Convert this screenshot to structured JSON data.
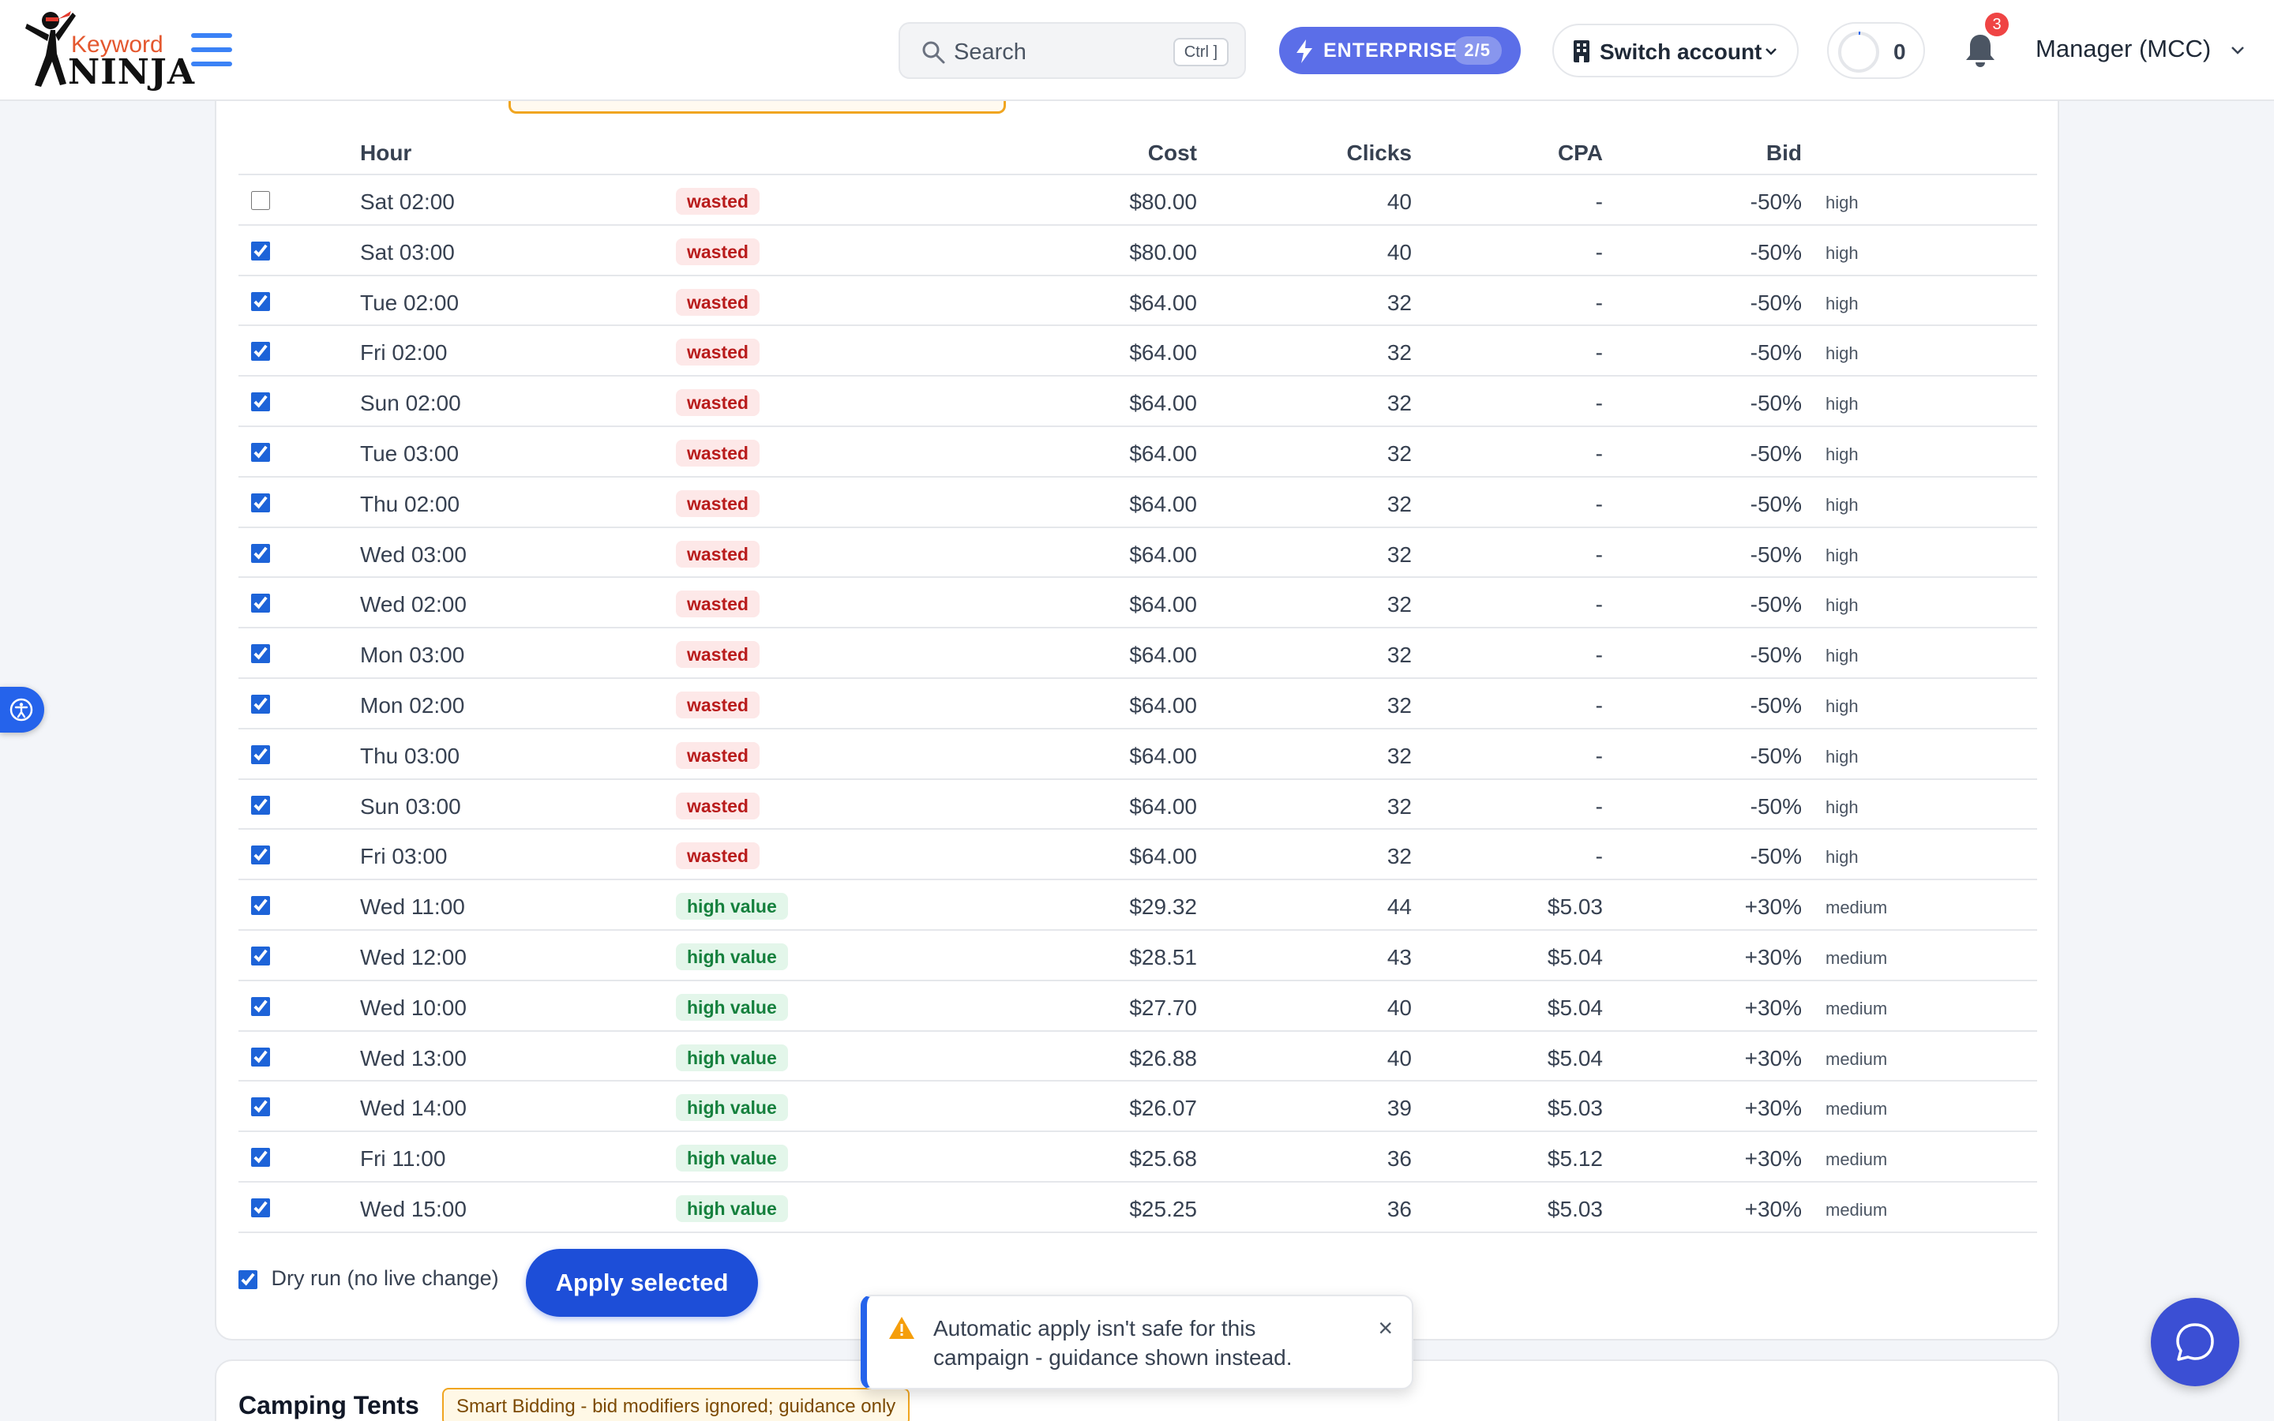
{
  "app": {
    "logo_top": "Keyword",
    "logo_bottom": "NINJA",
    "search_placeholder": "Search",
    "search_shortcut": "Ctrl ]",
    "plan_label": "ENTERPRISE",
    "plan_count": "2/5",
    "switch_account": "Switch account",
    "credits": "0",
    "notifications_count": "3",
    "account_name": "Manager (MCC)"
  },
  "colors": {
    "accent": "#1d4ed8",
    "enterprise": "#5b6ee8",
    "wasted_bg": "#fde8e8",
    "high_value_bg": "#e3f6ea",
    "warning": "#f0a520"
  },
  "table": {
    "headers": {
      "hour": "Hour",
      "cost": "Cost",
      "clicks": "Clicks",
      "cpa": "CPA",
      "bid": "Bid"
    },
    "rows": [
      {
        "checked": false,
        "hour": "Sat 02:00",
        "tag": "wasted",
        "cost": "$80.00",
        "clicks": "40",
        "cpa": "-",
        "bid": "-50%",
        "confidence": "high"
      },
      {
        "checked": true,
        "hour": "Sat 03:00",
        "tag": "wasted",
        "cost": "$80.00",
        "clicks": "40",
        "cpa": "-",
        "bid": "-50%",
        "confidence": "high"
      },
      {
        "checked": true,
        "hour": "Tue 02:00",
        "tag": "wasted",
        "cost": "$64.00",
        "clicks": "32",
        "cpa": "-",
        "bid": "-50%",
        "confidence": "high"
      },
      {
        "checked": true,
        "hour": "Fri 02:00",
        "tag": "wasted",
        "cost": "$64.00",
        "clicks": "32",
        "cpa": "-",
        "bid": "-50%",
        "confidence": "high"
      },
      {
        "checked": true,
        "hour": "Sun 02:00",
        "tag": "wasted",
        "cost": "$64.00",
        "clicks": "32",
        "cpa": "-",
        "bid": "-50%",
        "confidence": "high"
      },
      {
        "checked": true,
        "hour": "Tue 03:00",
        "tag": "wasted",
        "cost": "$64.00",
        "clicks": "32",
        "cpa": "-",
        "bid": "-50%",
        "confidence": "high"
      },
      {
        "checked": true,
        "hour": "Thu 02:00",
        "tag": "wasted",
        "cost": "$64.00",
        "clicks": "32",
        "cpa": "-",
        "bid": "-50%",
        "confidence": "high"
      },
      {
        "checked": true,
        "hour": "Wed 03:00",
        "tag": "wasted",
        "cost": "$64.00",
        "clicks": "32",
        "cpa": "-",
        "bid": "-50%",
        "confidence": "high"
      },
      {
        "checked": true,
        "hour": "Wed 02:00",
        "tag": "wasted",
        "cost": "$64.00",
        "clicks": "32",
        "cpa": "-",
        "bid": "-50%",
        "confidence": "high"
      },
      {
        "checked": true,
        "hour": "Mon 03:00",
        "tag": "wasted",
        "cost": "$64.00",
        "clicks": "32",
        "cpa": "-",
        "bid": "-50%",
        "confidence": "high"
      },
      {
        "checked": true,
        "hour": "Mon 02:00",
        "tag": "wasted",
        "cost": "$64.00",
        "clicks": "32",
        "cpa": "-",
        "bid": "-50%",
        "confidence": "high"
      },
      {
        "checked": true,
        "hour": "Thu 03:00",
        "tag": "wasted",
        "cost": "$64.00",
        "clicks": "32",
        "cpa": "-",
        "bid": "-50%",
        "confidence": "high"
      },
      {
        "checked": true,
        "hour": "Sun 03:00",
        "tag": "wasted",
        "cost": "$64.00",
        "clicks": "32",
        "cpa": "-",
        "bid": "-50%",
        "confidence": "high"
      },
      {
        "checked": true,
        "hour": "Fri 03:00",
        "tag": "wasted",
        "cost": "$64.00",
        "clicks": "32",
        "cpa": "-",
        "bid": "-50%",
        "confidence": "high"
      },
      {
        "checked": true,
        "hour": "Wed 11:00",
        "tag": "high value",
        "cost": "$29.32",
        "clicks": "44",
        "cpa": "$5.03",
        "bid": "+30%",
        "confidence": "medium"
      },
      {
        "checked": true,
        "hour": "Wed 12:00",
        "tag": "high value",
        "cost": "$28.51",
        "clicks": "43",
        "cpa": "$5.04",
        "bid": "+30%",
        "confidence": "medium"
      },
      {
        "checked": true,
        "hour": "Wed 10:00",
        "tag": "high value",
        "cost": "$27.70",
        "clicks": "40",
        "cpa": "$5.04",
        "bid": "+30%",
        "confidence": "medium"
      },
      {
        "checked": true,
        "hour": "Wed 13:00",
        "tag": "high value",
        "cost": "$26.88",
        "clicks": "40",
        "cpa": "$5.04",
        "bid": "+30%",
        "confidence": "medium"
      },
      {
        "checked": true,
        "hour": "Wed 14:00",
        "tag": "high value",
        "cost": "$26.07",
        "clicks": "39",
        "cpa": "$5.03",
        "bid": "+30%",
        "confidence": "medium"
      },
      {
        "checked": true,
        "hour": "Fri 11:00",
        "tag": "high value",
        "cost": "$25.68",
        "clicks": "36",
        "cpa": "$5.12",
        "bid": "+30%",
        "confidence": "medium"
      },
      {
        "checked": true,
        "hour": "Wed 15:00",
        "tag": "high value",
        "cost": "$25.25",
        "clicks": "36",
        "cpa": "$5.03",
        "bid": "+30%",
        "confidence": "medium"
      }
    ]
  },
  "controls": {
    "dry_run_label": "Dry run (no live change)",
    "dry_run_checked": true,
    "apply_label": "Apply selected"
  },
  "toast": {
    "message": "Automatic apply isn't safe for this campaign - guidance shown instead.",
    "close": "×",
    "icon": "warning-icon"
  },
  "next_campaign": {
    "title": "Camping Tents",
    "chip": "Smart Bidding - bid modifiers ignored; guidance only"
  }
}
